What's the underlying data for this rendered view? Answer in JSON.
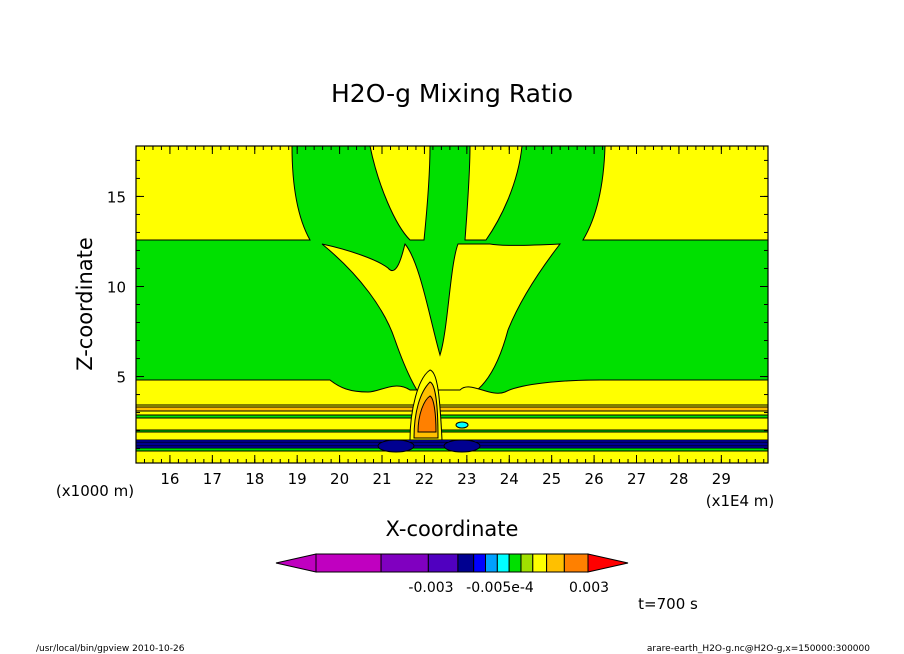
{
  "chart_data": {
    "type": "heatmap",
    "title": "H2O-g Mixing Ratio",
    "xlabel": "X-coordinate",
    "ylabel": "Z-coordinate",
    "x_unit": "(x1E4 m)",
    "y_unit": "(x1000 m)",
    "xlim": [
      15.2,
      30.1
    ],
    "ylim": [
      0.2,
      17.8
    ],
    "x_ticks": [
      "16",
      "17",
      "18",
      "19",
      "20",
      "21",
      "22",
      "23",
      "24",
      "25",
      "26",
      "27",
      "28",
      "29"
    ],
    "y_ticks": [
      "5",
      "10",
      "15"
    ],
    "colorbar_labels": [
      "-0.003",
      "-0.005e-4",
      "0.003"
    ],
    "colorbar_colors": [
      "#c000c0",
      "#8000c0",
      "#5000c0",
      "#000090",
      "#0000ff",
      "#00a0ff",
      "#00ffff",
      "#00e000",
      "#a0e000",
      "#ffff00",
      "#ffc000",
      "#ff8000",
      "#ff0000"
    ],
    "time_label": "t=700 s",
    "footer_left": "/usr/local/bin/gpview  2010-10-26",
    "footer_right": "arare-earth_H2O-g.nc@H2O-g,x=150000:300000"
  }
}
